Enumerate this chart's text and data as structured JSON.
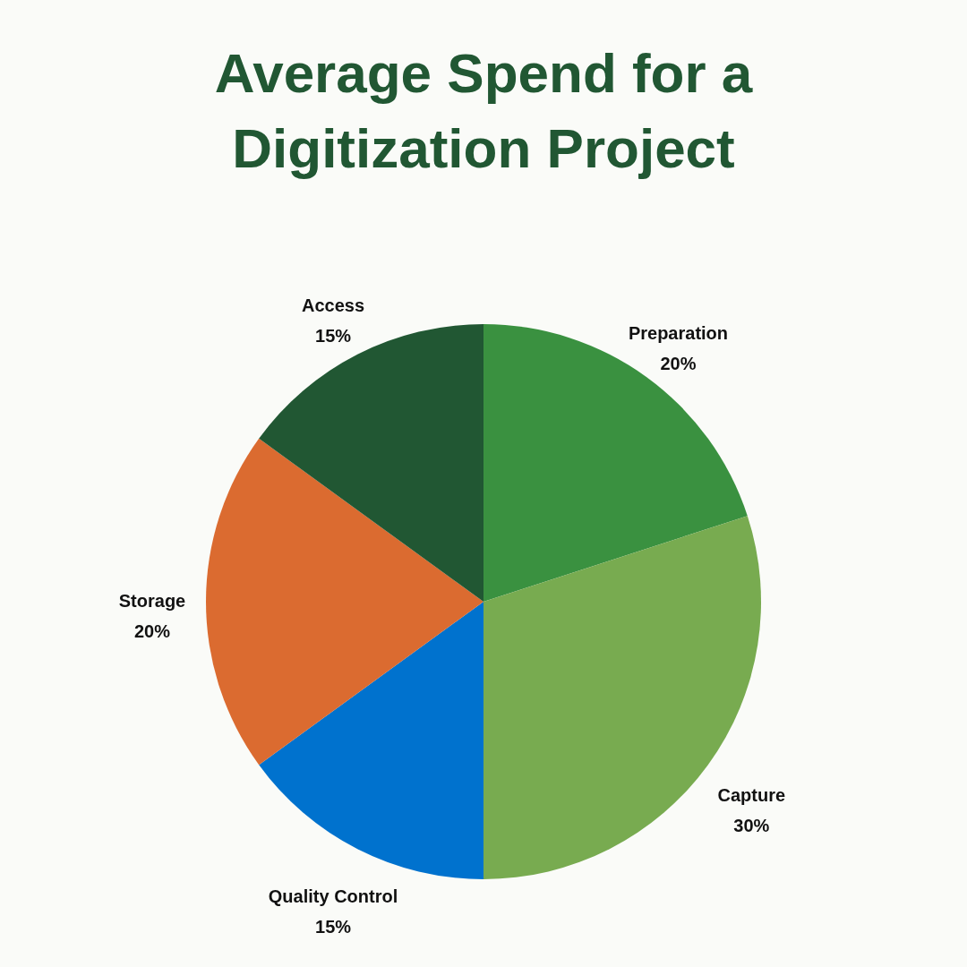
{
  "chart_data": {
    "type": "pie",
    "title": [
      "Average Spend for a",
      "Digitization Project"
    ],
    "categories": [
      "Preparation",
      "Capture",
      "Quality Control",
      "Storage",
      "Access"
    ],
    "values": [
      20,
      30,
      15,
      20,
      15
    ],
    "value_labels": [
      "20%",
      "30%",
      "15%",
      "20%",
      "15%"
    ],
    "colors": [
      "#3a9140",
      "#78ab50",
      "#0072ce",
      "#db6b30",
      "#215733"
    ],
    "legend": false
  }
}
